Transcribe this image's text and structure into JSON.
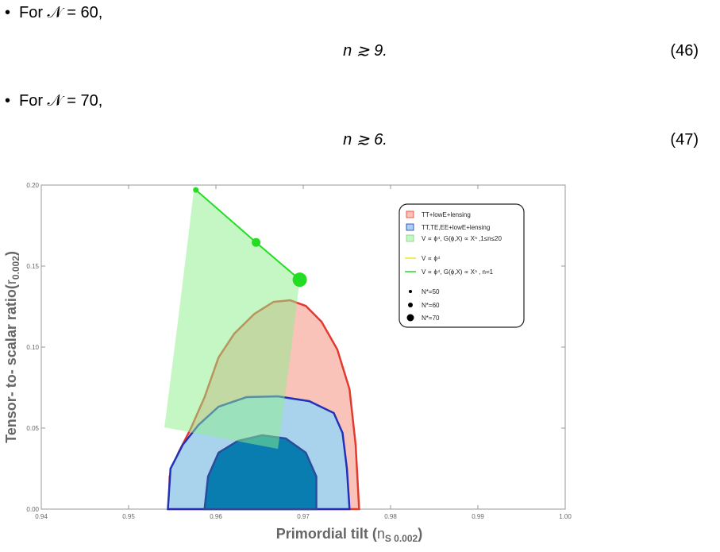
{
  "items": [
    {
      "text": "For 𝒩 = 60,",
      "equation": "n ≳ 9.",
      "number": "(46)"
    },
    {
      "text": "For 𝒩 = 70,",
      "equation": "n ≳ 6.",
      "number": "(47)"
    }
  ],
  "chart_data": {
    "type": "contour",
    "xlabel": "Primordial tilt (",
    "xlabel_var": "n",
    "xlabel_sub": "S 0.002",
    "xlabel_end": ")",
    "ylabel": "Tensor- to- scalar ratio(",
    "ylabel_var": "r",
    "ylabel_sub": "0.002",
    "ylabel_end": ")",
    "xlim": [
      0.94,
      1.0
    ],
    "xticks": [
      0.94,
      0.95,
      0.96,
      0.97,
      0.98,
      0.99,
      {
        "value": 1.0,
        "label": "1.00"
      }
    ],
    "ylim": [
      0,
      0.2
    ],
    "yticks": [
      {
        "value": 0,
        "label": "0.00"
      },
      0.05,
      {
        "value": 0.1,
        "label": "0.10"
      },
      0.15,
      {
        "value": 0.2,
        "label": "0.20"
      }
    ],
    "series": [
      {
        "name": "TT+lowE+lensing",
        "kind": "region",
        "color": "#f9c3ba",
        "edge_color": "#e23a2e",
        "x": [
          0.9546,
          0.9547,
          0.9557,
          0.9571,
          0.9587,
          0.9603,
          0.9621,
          0.9644,
          0.9666,
          0.9685,
          0.9703,
          0.9721,
          0.9739,
          0.9753,
          0.976,
          0.9764
        ],
        "y": [
          0,
          0.0201,
          0.0348,
          0.0495,
          0.0691,
          0.0936,
          0.1083,
          0.1205,
          0.1279,
          0.1289,
          0.1254,
          0.1156,
          0.0985,
          0.074,
          0.0397,
          0
        ]
      },
      {
        "name": "TT,TE,EE+lowE+lensing",
        "kind": "region",
        "color": "#a9d3ec",
        "edge_color": "#2331b8",
        "x": [
          0.9545,
          0.9548,
          0.9562,
          0.958,
          0.9603,
          0.9635,
          0.9671,
          0.9707,
          0.9735,
          0.9745,
          0.975,
          0.9753
        ],
        "y": [
          0,
          0.025,
          0.0397,
          0.0519,
          0.0632,
          0.0691,
          0.0696,
          0.0666,
          0.0593,
          0.047,
          0.025,
          0
        ]
      },
      {
        "kind": "region",
        "color": "#0a7db0",
        "edge_color": "#2b4c9c",
        "x": [
          0.9587,
          0.9591,
          0.9603,
          0.9625,
          0.9653,
          0.968,
          0.9703,
          0.9715,
          0.9715
        ],
        "y": [
          0,
          0.0201,
          0.0348,
          0.0421,
          0.0456,
          0.0436,
          0.0348,
          0.0201,
          0
        ]
      },
      {
        "name": "V ∝ ϕ⁴, G(ϕ,X) ∝ Xⁿ ,1≤n≤20",
        "kind": "region",
        "color": "rgba(140,240,140,0.5)",
        "edge_color": "none",
        "x": [
          0.9575,
          0.9696,
          0.9685,
          0.9671,
          0.9541,
          0.9557
        ],
        "y": [
          0.198,
          0.1416,
          0.0936,
          0.0372,
          0.0505,
          0.1181
        ]
      },
      {
        "name": "V ∝ ϕ⁴",
        "kind": "line",
        "color": "#f2e22a",
        "x": [],
        "y": []
      },
      {
        "name": "V ∝ ϕ⁴, G(ϕ,X) ∝ Xⁿ , n=1",
        "kind": "line",
        "color": "#22dd22",
        "x": [
          0.9577,
          0.9646,
          0.9696
        ],
        "y": [
          0.197,
          0.1646,
          0.1416
        ]
      },
      {
        "name": "N*=50",
        "kind": "point",
        "color": "#22dd22",
        "x": [
          0.9577
        ],
        "y": [
          0.197
        ]
      },
      {
        "name": "N*=60",
        "kind": "point",
        "color": "#22dd22",
        "x": [
          0.9646
        ],
        "y": [
          0.1646
        ]
      },
      {
        "name": "N*=70",
        "kind": "point",
        "color": "#22dd22",
        "x": [
          0.9696
        ],
        "y": [
          0.1416
        ]
      }
    ]
  }
}
